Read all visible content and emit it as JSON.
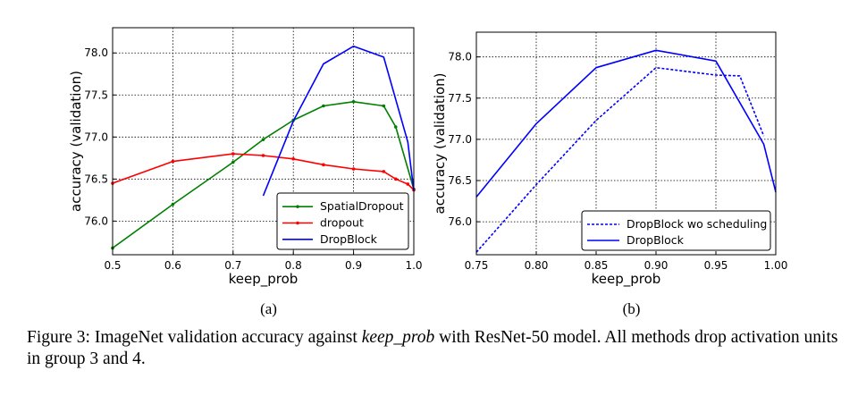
{
  "chart_data": [
    {
      "id": "a",
      "type": "line",
      "subfigure_label": "(a)",
      "xlabel": "keep_prob",
      "ylabel": "accuracy (validation)",
      "xlim": [
        0.5,
        1.0
      ],
      "ylim": [
        75.6,
        78.3
      ],
      "xticks": [
        0.5,
        0.6,
        0.7,
        0.8,
        0.9,
        1.0
      ],
      "xtick_labels": [
        "0.5",
        "0.6",
        "0.7",
        "0.8",
        "0.9",
        "1.0"
      ],
      "yticks": [
        76.0,
        76.5,
        77.0,
        77.5,
        78.0
      ],
      "ytick_labels": [
        "76.0",
        "76.5",
        "77.0",
        "77.5",
        "78.0"
      ],
      "grid": true,
      "legend_position": "lower-right",
      "series": [
        {
          "name": "SpatialDropout",
          "color": "#008000",
          "dash": "solid",
          "marker": true,
          "x": [
            0.5,
            0.6,
            0.7,
            0.75,
            0.8,
            0.85,
            0.9,
            0.95,
            0.97,
            1.0
          ],
          "y": [
            75.68,
            76.2,
            76.7,
            76.97,
            77.2,
            77.37,
            77.42,
            77.37,
            77.12,
            76.38
          ]
        },
        {
          "name": "dropout",
          "color": "#ff0000",
          "dash": "solid",
          "marker": true,
          "x": [
            0.5,
            0.6,
            0.7,
            0.75,
            0.8,
            0.85,
            0.9,
            0.95,
            0.97,
            0.99,
            1.0
          ],
          "y": [
            76.45,
            76.71,
            76.8,
            76.78,
            76.74,
            76.67,
            76.62,
            76.59,
            76.5,
            76.44,
            76.37
          ]
        },
        {
          "name": "DropBlock",
          "color": "#0000ff",
          "dash": "solid",
          "marker": false,
          "x": [
            0.75,
            0.8,
            0.85,
            0.9,
            0.95,
            0.99,
            1.0
          ],
          "y": [
            76.3,
            77.19,
            77.87,
            78.08,
            77.95,
            76.94,
            76.36
          ]
        }
      ]
    },
    {
      "id": "b",
      "type": "line",
      "subfigure_label": "(b)",
      "xlabel": "keep_prob",
      "ylabel": "accuracy (validation)",
      "xlim": [
        0.75,
        1.0
      ],
      "ylim": [
        75.6,
        78.3
      ],
      "xticks": [
        0.75,
        0.8,
        0.85,
        0.9,
        0.95,
        1.0
      ],
      "xtick_labels": [
        "0.75",
        "0.80",
        "0.85",
        "0.90",
        "0.95",
        "1.00"
      ],
      "yticks": [
        76.0,
        76.5,
        77.0,
        77.5,
        78.0
      ],
      "ytick_labels": [
        "76.0",
        "76.5",
        "77.0",
        "77.5",
        "78.0"
      ],
      "grid": true,
      "legend_position": "lower-right",
      "series": [
        {
          "name": "DropBlock wo scheduling",
          "color": "#0000ff",
          "dash": "dotted",
          "marker": false,
          "x": [
            0.75,
            0.8,
            0.85,
            0.9,
            0.95,
            0.97,
            0.99
          ],
          "y": [
            75.63,
            76.45,
            77.23,
            77.87,
            77.78,
            77.77,
            77.04
          ]
        },
        {
          "name": "DropBlock",
          "color": "#0000ff",
          "dash": "solid",
          "marker": false,
          "x": [
            0.75,
            0.8,
            0.85,
            0.9,
            0.95,
            0.99,
            1.0
          ],
          "y": [
            76.3,
            77.19,
            77.87,
            78.08,
            77.95,
            76.94,
            76.36
          ]
        }
      ]
    }
  ],
  "caption": {
    "prefix": "Figure 3: ImageNet validation accuracy against ",
    "emphasis": "keep_prob",
    "suffix": " with ResNet-50 model. All methods drop activation units in group 3 and 4."
  }
}
